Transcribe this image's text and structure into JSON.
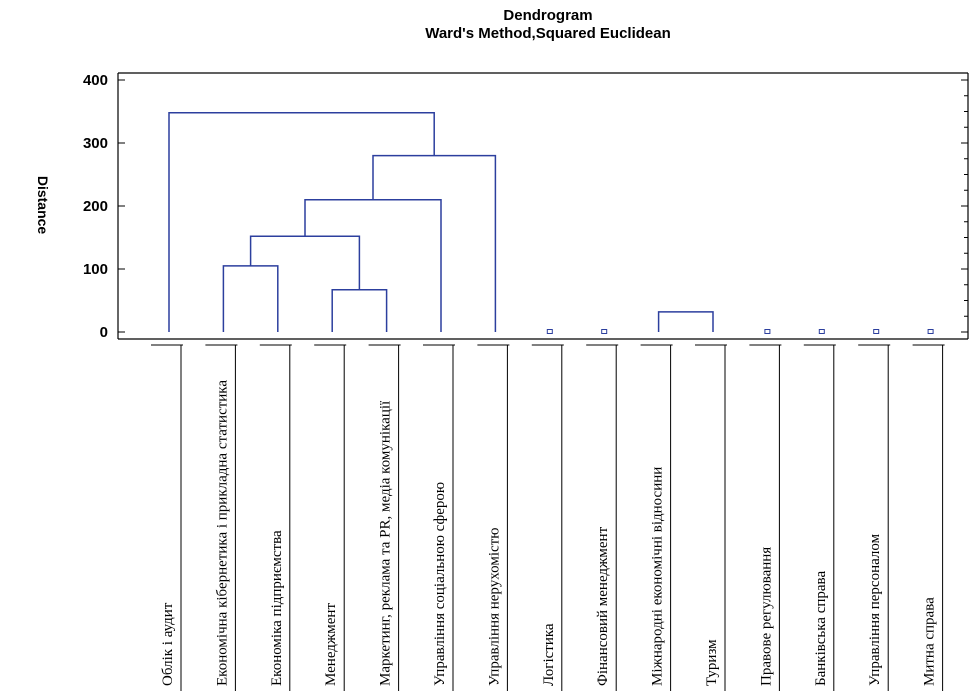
{
  "chart_data": {
    "type": "dendrogram",
    "title": "Dendrogram",
    "subtitle": "Ward's Method,Squared Euclidean",
    "ylabel": "Distance",
    "ylim": [
      0,
      400
    ],
    "yticks": [
      0,
      100,
      200,
      300,
      400
    ],
    "leaves": [
      "Облік і аудит",
      "Економічна кібернетика і прикладна статистика",
      "Економіка підприємства",
      "Менеджмент",
      "Маркетинг, реклама та PR, медіа комунікації",
      "Управління соціальною сферою",
      "Управління нерухомістю",
      "Логістика",
      "Фінансовий менеджмент",
      "Міжнародні економічні відносини",
      "Туризм",
      "Правове регулювання",
      "Банківська справа",
      "Управління персоналом",
      "Митна справа"
    ],
    "merges": [
      {
        "left": "leaf:1",
        "right": "leaf:2",
        "height": 105
      },
      {
        "left": "leaf:3",
        "right": "leaf:4",
        "height": 67
      },
      {
        "left": "node:0",
        "right": "node:1",
        "height": 152
      },
      {
        "left": "node:2",
        "right": "leaf:5",
        "height": 210
      },
      {
        "left": "node:3",
        "right": "leaf:6",
        "height": 280
      },
      {
        "left": "leaf:0",
        "right": "node:4",
        "height": 348
      },
      {
        "left": "leaf:9",
        "right": "leaf:10",
        "height": 32
      }
    ],
    "singleton_leaves": [
      7,
      8,
      11,
      12,
      13,
      14
    ]
  }
}
